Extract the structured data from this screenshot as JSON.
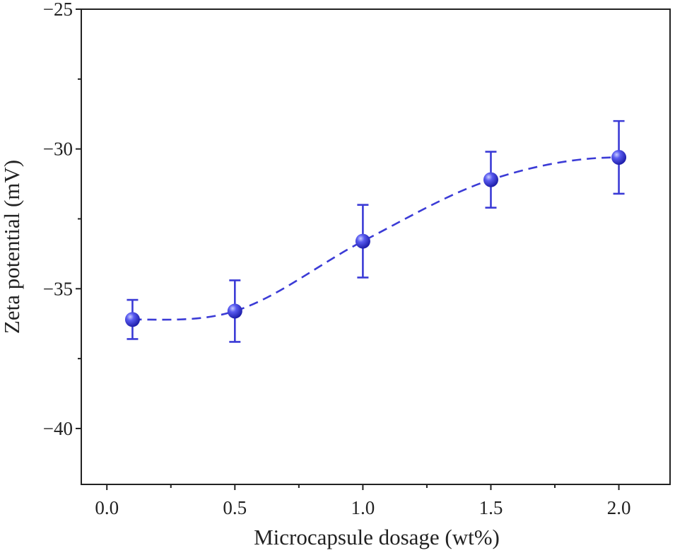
{
  "chart_data": {
    "type": "scatter",
    "title": "",
    "xlabel": "Microcapsule dosage (wt%)",
    "ylabel": "Zeta potential (mV)",
    "xlim": [
      -0.1,
      2.2
    ],
    "ylim": [
      -42,
      -25
    ],
    "xticks": [
      0.0,
      0.5,
      1.0,
      1.5,
      2.0
    ],
    "xtick_labels": [
      "0.0",
      "0.5",
      "1.0",
      "1.5",
      "2.0"
    ],
    "yticks": [
      -40,
      -35,
      -30,
      -25
    ],
    "ytick_labels": [
      "−40",
      "−35",
      "−30",
      "−25"
    ],
    "grid": false,
    "series": [
      {
        "name": "Zeta potential",
        "color": "#3b3bd6",
        "x": [
          0.1,
          0.5,
          1.0,
          1.5,
          2.0
        ],
        "y": [
          -36.1,
          -35.8,
          -33.3,
          -31.1,
          -30.3
        ],
        "yerr": [
          0.7,
          1.1,
          1.3,
          1.0,
          1.3
        ],
        "fit_line": "dashed"
      }
    ]
  }
}
